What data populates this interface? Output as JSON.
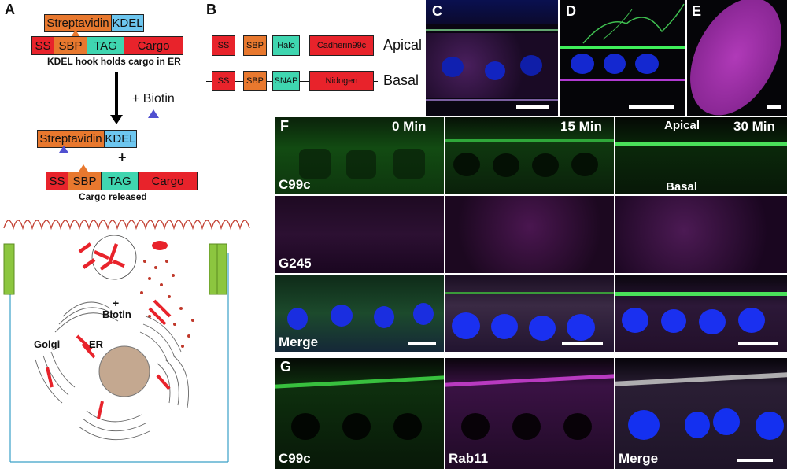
{
  "panels": {
    "A": "A",
    "B": "B",
    "C": "C",
    "D": "D",
    "E": "E",
    "F": "F",
    "G": "G"
  },
  "panel_a": {
    "hook_top": {
      "streptavidin": "Streptavidin",
      "kdel": "KDEL"
    },
    "cargo_top": {
      "ss": "SS",
      "sbp": "SBP",
      "tag": "TAG",
      "cargo": "Cargo"
    },
    "caption_hook": "KDEL hook holds cargo in ER",
    "biotin_label": "+ Biotin",
    "hook_bottom": {
      "streptavidin": "Streptavidin",
      "kdel": "KDEL"
    },
    "plus": "+",
    "cargo_bottom": {
      "ss": "SS",
      "sbp": "SBP",
      "tag": "TAG",
      "cargo": "Cargo"
    },
    "caption_released": "Cargo released",
    "cell": {
      "plus": "+",
      "biotin": "Biotin",
      "golgi": "Golgi",
      "er": "ER"
    }
  },
  "panel_b": {
    "apical": {
      "ss": "SS",
      "sbp": "SBP",
      "tag": "Halo",
      "cargo": "Cadherin99c",
      "label": "Apical"
    },
    "basal": {
      "ss": "SS",
      "sbp": "SBP",
      "tag": "SNAP",
      "cargo": "Nidogen",
      "label": "Basal"
    }
  },
  "panel_f": {
    "times": [
      "0 Min",
      "15 Min",
      "30 Min"
    ],
    "rows": [
      "C99c",
      "G245",
      "Merge"
    ],
    "apical": "Apical",
    "basal": "Basal"
  },
  "panel_g": {
    "labels": [
      "C99c",
      "Rab11",
      "Merge"
    ]
  },
  "colors": {
    "red": "#e8232b",
    "orange": "#e8782e",
    "teal": "#3fd6b0",
    "blue": "#6dc6ef",
    "green_channel": "#38d13a",
    "magenta_channel": "#c22fc8",
    "dapi": "#2230ff"
  }
}
